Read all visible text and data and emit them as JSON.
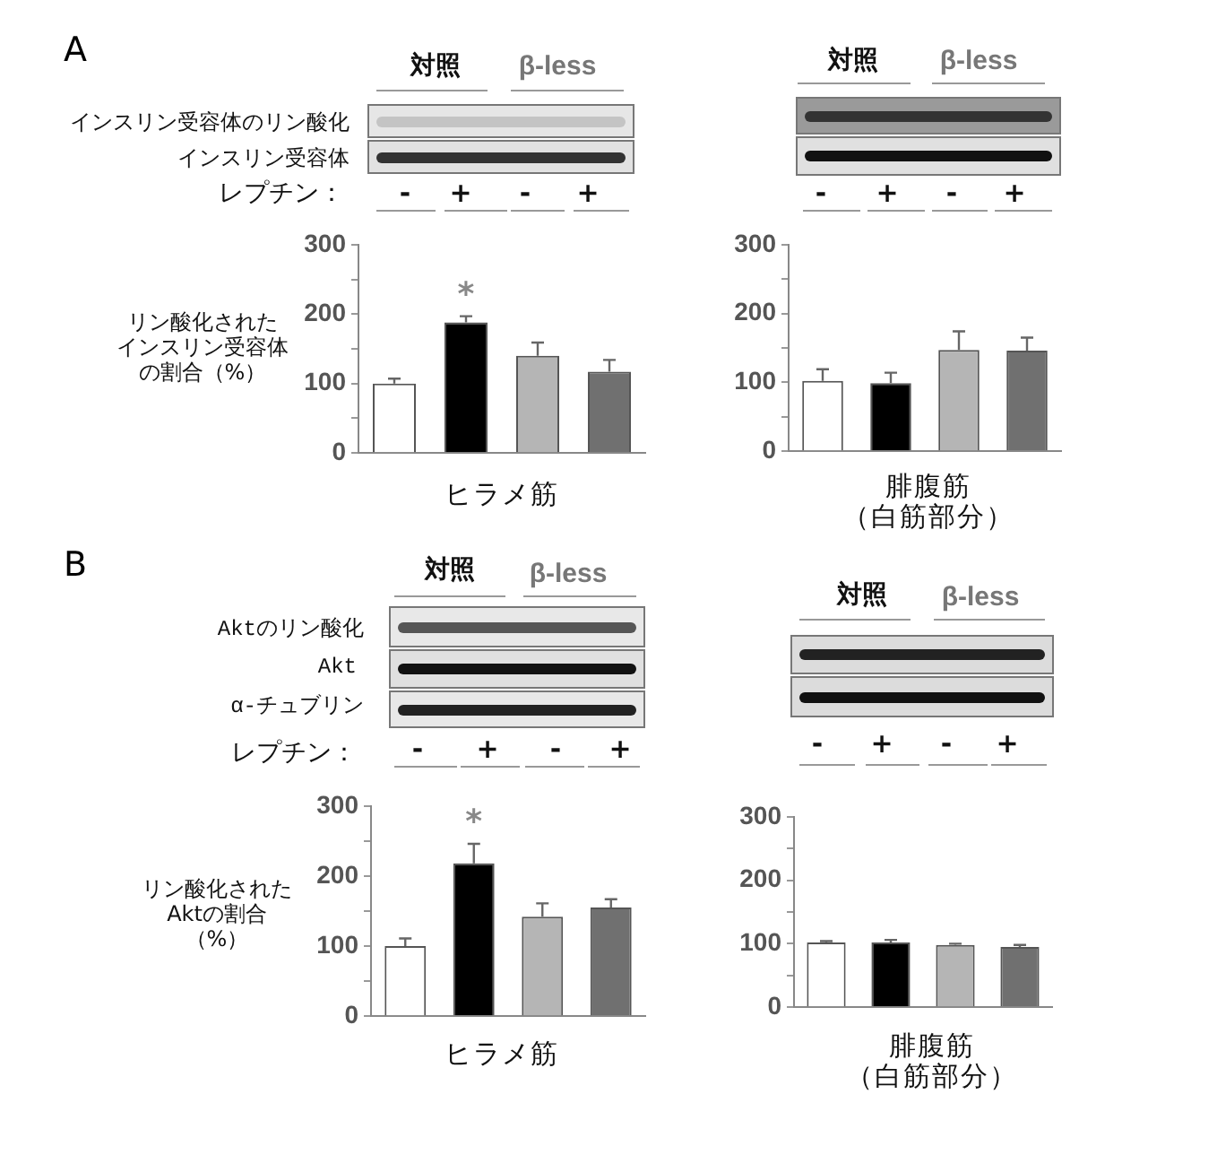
{
  "chart_data": [
    {
      "type": "bar",
      "categories": [
        null,
        null,
        null,
        null
      ],
      "values": [
        100,
        188,
        140,
        117
      ],
      "colors": [
        "#ffffff",
        "#000000",
        "#b5b5b5",
        "#707070"
      ],
      "errors": [
        [
          100,
          107
        ],
        [
          188,
          197
        ],
        [
          140,
          159
        ],
        [
          117,
          134
        ]
      ],
      "value_labels": [
        null,
        "*",
        null,
        null
      ],
      "ylim": [
        0,
        300
      ],
      "yticks": [
        0,
        {
          "value": 50,
          "label": null
        },
        100,
        {
          "value": 150,
          "label": null
        },
        200,
        {
          "value": 250,
          "label": null
        },
        300
      ],
      "tick_labels": "y",
      "ylabel": "リン酸化されたインスリン受容体の割合（%）",
      "xlabel": "ヒラメ筋",
      "annotations": [
        "A",
        "対照",
        "β-less",
        "インスリン受容体のリン酸化",
        "インスリン受容体",
        "レプチン：",
        "-",
        "+",
        "-",
        "+"
      ]
    },
    {
      "type": "bar",
      "categories": [
        null,
        null,
        null,
        null
      ],
      "values": [
        102,
        99,
        147,
        146
      ],
      "colors": [
        "#ffffff",
        "#000000",
        "#b5b5b5",
        "#707070"
      ],
      "errors": [
        [
          102,
          119
        ],
        [
          99,
          114
        ],
        [
          147,
          174
        ],
        [
          146,
          165
        ]
      ],
      "ylim": [
        0,
        300
      ],
      "yticks": [
        0,
        {
          "value": 50,
          "label": null
        },
        100,
        {
          "value": 150,
          "label": null
        },
        200,
        {
          "value": 250,
          "label": null
        },
        300
      ],
      "tick_labels": "y",
      "xlabel": "腓腹筋（白筋部分）",
      "annotations": [
        "対照",
        "β-less",
        "-",
        "+",
        "-",
        "+"
      ]
    },
    {
      "type": "bar",
      "categories": [
        null,
        null,
        null,
        null
      ],
      "values": [
        100,
        218,
        142,
        155
      ],
      "colors": [
        "#ffffff",
        "#000000",
        "#b5b5b5",
        "#707070"
      ],
      "errors": [
        [
          100,
          111
        ],
        [
          218,
          246
        ],
        [
          142,
          161
        ],
        [
          155,
          167
        ]
      ],
      "value_labels": [
        null,
        "*",
        null,
        null
      ],
      "ylim": [
        0,
        300
      ],
      "yticks": [
        0,
        {
          "value": 50,
          "label": null
        },
        100,
        {
          "value": 150,
          "label": null
        },
        200,
        {
          "value": 250,
          "label": null
        },
        300
      ],
      "tick_labels": "y",
      "ylabel": "リン酸化されたAktの割合（%）",
      "xlabel": "ヒラメ筋",
      "annotations": [
        "B",
        "対照",
        "β-less",
        "Aktのリン酸化",
        "Akt",
        "α-チュブリン",
        "レプチン：",
        "-",
        "+",
        "-",
        "+"
      ]
    },
    {
      "type": "bar",
      "categories": [
        null,
        null,
        null,
        null
      ],
      "values": [
        102,
        102,
        98,
        95
      ],
      "colors": [
        "#ffffff",
        "#000000",
        "#b5b5b5",
        "#707070"
      ],
      "errors": [
        [
          102,
          104
        ],
        [
          102,
          106
        ],
        [
          98,
          100
        ],
        [
          95,
          98
        ]
      ],
      "ylim": [
        0,
        300
      ],
      "yticks": [
        0,
        {
          "value": 50,
          "label": null
        },
        100,
        {
          "value": 150,
          "label": null
        },
        200,
        {
          "value": 250,
          "label": null
        },
        300
      ],
      "tick_labels": "y",
      "xlabel": "腓腹筋（白筋部分）",
      "annotations": [
        "対照",
        "β-less",
        "-",
        "+",
        "-",
        "+"
      ]
    }
  ]
}
